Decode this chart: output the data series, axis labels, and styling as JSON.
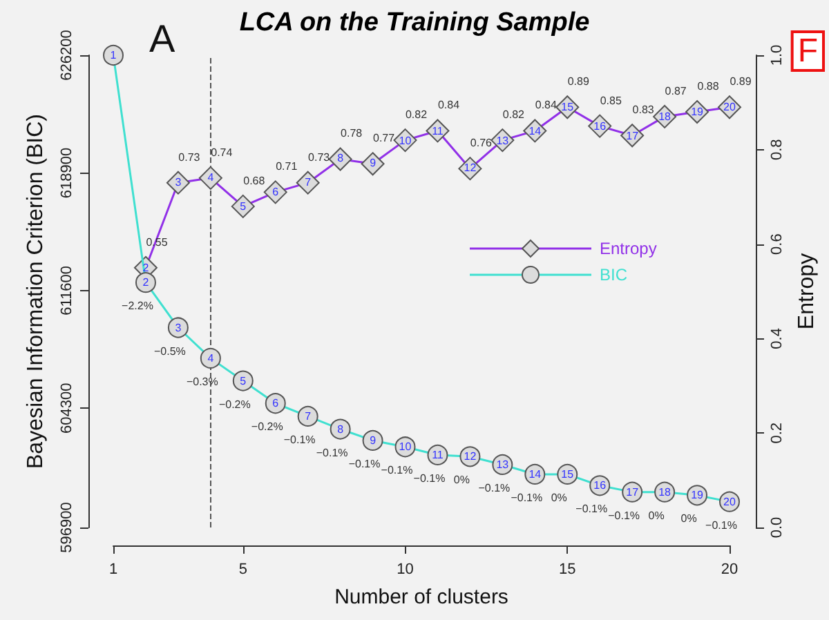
{
  "chart_data": {
    "type": "line",
    "title": "LCA on the Training Sample",
    "xlabel": "Number of clusters",
    "ylabel": "Bayesian Information Criterion (BIC)",
    "y2label": "Entropy",
    "x": [
      1,
      2,
      3,
      4,
      5,
      6,
      7,
      8,
      9,
      10,
      11,
      12,
      13,
      14,
      15,
      16,
      17,
      18,
      19,
      20
    ],
    "xlim": [
      1,
      20
    ],
    "xticks": [
      1,
      5,
      10,
      15,
      20
    ],
    "ylim": [
      596900,
      626200
    ],
    "yticks": [
      596900,
      604300,
      611600,
      618900,
      626200
    ],
    "y2lim": [
      0,
      1
    ],
    "y2ticks": [
      {
        "value": 0,
        "label": "0.0"
      },
      {
        "value": 0.2,
        "label": "0.2"
      },
      {
        "value": 0.4,
        "label": "0.4"
      },
      {
        "value": 0.6,
        "label": "0.6"
      },
      {
        "value": 0.8,
        "label": "0.8"
      },
      {
        "value": 1,
        "label": "1.0"
      }
    ],
    "series": [
      {
        "name": "Entropy",
        "color": "#9130e8",
        "axis": "y2",
        "marker": "diamond",
        "data_labels": true,
        "values": [
          null,
          0.55,
          0.73,
          0.74,
          0.68,
          0.71,
          0.73,
          0.78,
          0.77,
          0.82,
          0.84,
          0.76,
          0.82,
          0.84,
          0.89,
          0.85,
          0.83,
          0.87,
          0.88,
          0.89
        ]
      },
      {
        "name": "BIC",
        "color": "#40e0d0",
        "marker": "circle",
        "values": [
          626200,
          612100,
          609300,
          607400,
          606000,
          604600,
          603800,
          603000,
          602300,
          601900,
          601400,
          601300,
          600800,
          600200,
          600200,
          599500,
          599100,
          599100,
          598900,
          598500
        ]
      }
    ],
    "ref_lines": [
      {
        "axis": "x",
        "value": 4,
        "line_style": "dashed",
        "color": "#555555"
      }
    ],
    "annotations": [
      "A",
      "F",
      {
        "text": "2",
        "x": 2,
        "y": 613000
      },
      {
        "text": "3",
        "x": 3,
        "y": 618300
      },
      {
        "text": "4",
        "x": 4,
        "y": 618600
      },
      {
        "text": "5",
        "x": 5,
        "y": 616800
      },
      {
        "text": "6",
        "x": 6,
        "y": 617700
      },
      {
        "text": "7",
        "x": 7,
        "y": 618300
      },
      {
        "text": "8",
        "x": 8,
        "y": 619800
      },
      {
        "text": "9",
        "x": 9,
        "y": 619500
      },
      {
        "text": "10",
        "x": 10,
        "y": 620900
      },
      {
        "text": "11",
        "x": 11,
        "y": 621500
      },
      {
        "text": "12",
        "x": 12,
        "y": 619200
      },
      {
        "text": "13",
        "x": 13,
        "y": 620900
      },
      {
        "text": "14",
        "x": 14,
        "y": 621500
      },
      {
        "text": "15",
        "x": 15,
        "y": 623000
      },
      {
        "text": "16",
        "x": 16,
        "y": 621800
      },
      {
        "text": "17",
        "x": 17,
        "y": 621200
      },
      {
        "text": "18",
        "x": 18,
        "y": 622400
      },
      {
        "text": "19",
        "x": 19,
        "y": 622700
      },
      {
        "text": "20",
        "x": 20,
        "y": 623000
      },
      {
        "text": "1",
        "x": 1,
        "y": 626200
      },
      {
        "text": "2",
        "x": 2,
        "y": 612100
      },
      {
        "text": "3",
        "x": 3,
        "y": 609300
      },
      {
        "text": "4",
        "x": 4,
        "y": 607400
      },
      {
        "text": "5",
        "x": 5,
        "y": 606000
      },
      {
        "text": "6",
        "x": 6,
        "y": 604600
      },
      {
        "text": "7",
        "x": 7,
        "y": 603800
      },
      {
        "text": "8",
        "x": 8,
        "y": 603000
      },
      {
        "text": "9",
        "x": 9,
        "y": 602300
      },
      {
        "text": "10",
        "x": 10,
        "y": 601900
      },
      {
        "text": "11",
        "x": 11,
        "y": 601400
      },
      {
        "text": "12",
        "x": 12,
        "y": 601300
      },
      {
        "text": "13",
        "x": 13,
        "y": 600800
      },
      {
        "text": "14",
        "x": 14,
        "y": 600200
      },
      {
        "text": "15",
        "x": 15,
        "y": 600200
      },
      {
        "text": "16",
        "x": 16,
        "y": 599500
      },
      {
        "text": "17",
        "x": 17,
        "y": 599100
      },
      {
        "text": "18",
        "x": 18,
        "y": 599100
      },
      {
        "text": "19",
        "x": 19,
        "y": 598900
      },
      {
        "text": "20",
        "x": 20,
        "y": 598500
      },
      {
        "text": "−2.2%",
        "x": 2,
        "y": 612100
      },
      {
        "text": "−0.5%",
        "x": 3,
        "y": 609300
      },
      {
        "text": "−0.3%",
        "x": 4,
        "y": 607400
      },
      {
        "text": "−0.2%",
        "x": 5,
        "y": 606000
      },
      {
        "text": "−0.2%",
        "x": 6,
        "y": 604600
      },
      {
        "text": "−0.1%",
        "x": 7,
        "y": 603800
      },
      {
        "text": "−0.1%",
        "x": 8,
        "y": 603000
      },
      {
        "text": "−0.1%",
        "x": 9,
        "y": 602300
      },
      {
        "text": "−0.1%",
        "x": 10,
        "y": 601900
      },
      {
        "text": "−0.1%",
        "x": 11,
        "y": 601400
      },
      {
        "text": "0%",
        "x": 12,
        "y": 601300
      },
      {
        "text": "−0.1%",
        "x": 13,
        "y": 600800
      },
      {
        "text": "−0.1%",
        "x": 14,
        "y": 600200
      },
      {
        "text": "0%",
        "x": 15,
        "y": 600200
      },
      {
        "text": "−0.1%",
        "x": 16,
        "y": 599500
      },
      {
        "text": "−0.1%",
        "x": 17,
        "y": 599100
      },
      {
        "text": "0%",
        "x": 18,
        "y": 599100
      },
      {
        "text": "0%",
        "x": 19,
        "y": 598900
      },
      {
        "text": "−0.1%",
        "x": 20,
        "y": 598500
      }
    ],
    "legend": "right",
    "grid": false
  }
}
